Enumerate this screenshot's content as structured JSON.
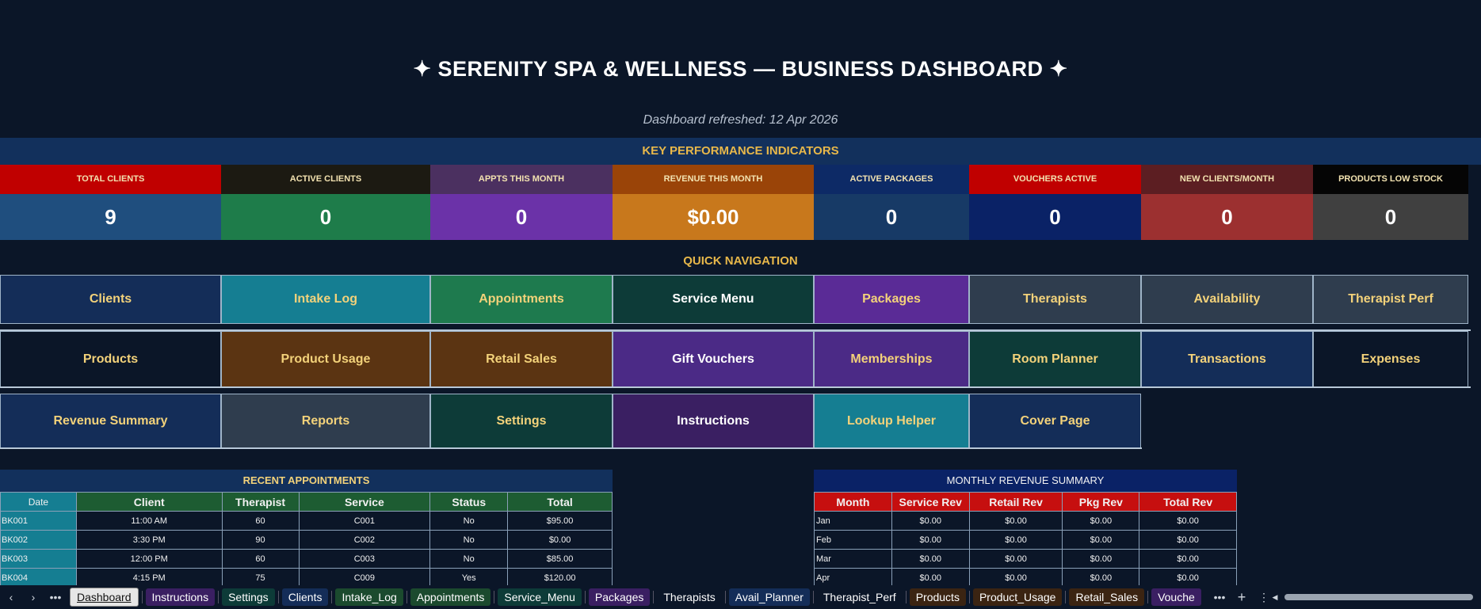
{
  "header": {
    "title": "✦  SERENITY SPA & WELLNESS  —  BUSINESS DASHBOARD  ✦",
    "refreshed": "Dashboard refreshed: 12 Apr 2026"
  },
  "kpi_band": "KEY PERFORMANCE INDICATORS",
  "kpis": [
    {
      "label": "TOTAL CLIENTS",
      "value": "9",
      "label_bg": "#c00000",
      "value_bg": "#1f4e7e"
    },
    {
      "label": "ACTIVE CLIENTS",
      "value": "0",
      "label_bg": "#1c1a12",
      "value_bg": "#1e7c4a"
    },
    {
      "label": "APPTS THIS MONTH",
      "value": "0",
      "label_bg": "#4b3060",
      "value_bg": "#6b32a8"
    },
    {
      "label": "REVENUE THIS MONTH",
      "value": "$0.00",
      "label_bg": "#9a4408",
      "value_bg": "#c8781c"
    },
    {
      "label": "ACTIVE PACKAGES",
      "value": "0",
      "label_bg": "#0d2a66",
      "value_bg": "#173a66"
    },
    {
      "label": "VOUCHERS ACTIVE",
      "value": "0",
      "label_bg": "#c00000",
      "value_bg": "#0a2266"
    },
    {
      "label": "NEW CLIENTS/MONTH",
      "value": "0",
      "label_bg": "#5c1e22",
      "value_bg": "#9c3030"
    },
    {
      "label": "PRODUCTS LOW STOCK",
      "value": "0",
      "label_bg": "#050505",
      "value_bg": "#404040"
    }
  ],
  "nav_band": "QUICK NAVIGATION",
  "nav_rows": [
    [
      {
        "label": "Clients",
        "bg": "#142d58"
      },
      {
        "label": "Intake Log",
        "bg": "#157e92"
      },
      {
        "label": "Appointments",
        "bg": "#1e7a4e"
      },
      {
        "label": "Service Menu",
        "bg": "#0d3b38",
        "white": true
      },
      {
        "label": "Packages",
        "bg": "#5a2b96"
      },
      {
        "label": "Therapists",
        "bg": "#2f3d4e"
      },
      {
        "label": "Availability",
        "bg": "#2f3d4e"
      },
      {
        "label": "Therapist Perf",
        "bg": "#2f3d4e"
      }
    ],
    [
      {
        "label": "Products",
        "bg": "#0b1628"
      },
      {
        "label": "Product Usage",
        "bg": "#5b3412"
      },
      {
        "label": "Retail Sales",
        "bg": "#5b3412"
      },
      {
        "label": "Gift Vouchers",
        "bg": "#4b2a86",
        "white": true
      },
      {
        "label": "Memberships",
        "bg": "#4b2a86"
      },
      {
        "label": "Room Planner",
        "bg": "#0d3b38"
      },
      {
        "label": "Transactions",
        "bg": "#142d58"
      },
      {
        "label": "Expenses",
        "bg": "#0b1628"
      }
    ],
    [
      {
        "label": "Revenue Summary",
        "bg": "#142d58"
      },
      {
        "label": "Reports",
        "bg": "#2f3d4e"
      },
      {
        "label": "Settings",
        "bg": "#0d3b38"
      },
      {
        "label": "Instructions",
        "bg": "#3a1f62",
        "white": true
      },
      {
        "label": "Lookup Helper",
        "bg": "#157e92"
      },
      {
        "label": "Cover Page",
        "bg": "#142d58"
      }
    ]
  ],
  "recent_appointments": {
    "title": "RECENT APPOINTMENTS",
    "columns": [
      "Date",
      "Client",
      "Therapist",
      "Service",
      "Status",
      "Total"
    ],
    "rows": [
      [
        "BK001",
        "11:00 AM",
        "60",
        "C001",
        "No",
        "$95.00"
      ],
      [
        "BK002",
        "3:30 PM",
        "90",
        "C002",
        "No",
        "$0.00"
      ],
      [
        "BK003",
        "12:00 PM",
        "60",
        "C003",
        "No",
        "$85.00"
      ],
      [
        "BK004",
        "4:15 PM",
        "75",
        "C009",
        "Yes",
        "$120.00"
      ]
    ]
  },
  "monthly_revenue": {
    "title": "MONTHLY REVENUE SUMMARY",
    "columns": [
      "Month",
      "Service Rev",
      "Retail Rev",
      "Pkg Rev",
      "Total Rev"
    ],
    "rows": [
      [
        "Jan",
        "$0.00",
        "$0.00",
        "$0.00",
        "$0.00"
      ],
      [
        "Feb",
        "$0.00",
        "$0.00",
        "$0.00",
        "$0.00"
      ],
      [
        "Mar",
        "$0.00",
        "$0.00",
        "$0.00",
        "$0.00"
      ],
      [
        "Apr",
        "$0.00",
        "$0.00",
        "$0.00",
        "$0.00"
      ]
    ]
  },
  "tabbar": {
    "prev": "‹",
    "next": "›",
    "more": "•••",
    "add": "+",
    "menu": "⋮",
    "scroll_left": "◀",
    "scroll_right": "▶",
    "tabs": [
      {
        "label": "Dashboard",
        "bg": "#e6e6e6",
        "active": true
      },
      {
        "label": "Instructions",
        "bg": "#3a1f62"
      },
      {
        "label": "Settings",
        "bg": "#0d3b38"
      },
      {
        "label": "Clients",
        "bg": "#142d58"
      },
      {
        "label": "Intake_Log",
        "bg": "#1b4a2e"
      },
      {
        "label": "Appointments",
        "bg": "#1b4a2e"
      },
      {
        "label": "Service_Menu",
        "bg": "#0d3b38"
      },
      {
        "label": "Packages",
        "bg": "#3a1f62"
      },
      {
        "label": "Therapists",
        "bg": "#0b1628"
      },
      {
        "label": "Avail_Planner",
        "bg": "#142d58"
      },
      {
        "label": "Therapist_Perf",
        "bg": "#0b1628"
      },
      {
        "label": "Products",
        "bg": "#3b2412"
      },
      {
        "label": "Product_Usage",
        "bg": "#3b2412"
      },
      {
        "label": "Retail_Sales",
        "bg": "#3b2412"
      },
      {
        "label": "Vouche",
        "bg": "#3a1f62"
      }
    ]
  }
}
